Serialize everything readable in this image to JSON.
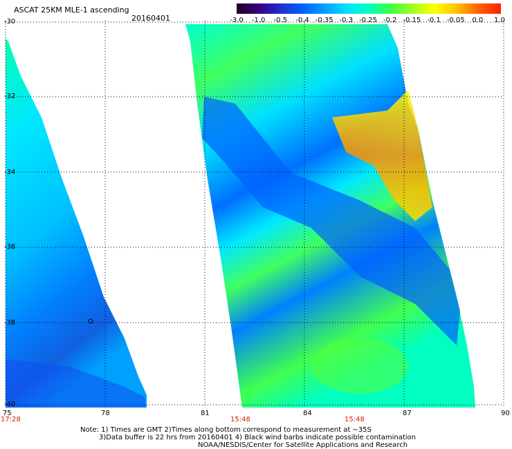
{
  "title": "ASCAT 25KM MLE-1 ascending",
  "date": "20160401",
  "colorbar": {
    "labels": [
      "-3.0",
      "-1.0",
      "-0.5",
      "-0.4",
      "-0.35",
      "-0.3",
      "-0.25",
      "-0.2",
      "-0.15",
      "-0.1",
      "-0.05",
      "0.0",
      "1.0"
    ],
    "colors": [
      "#200020",
      "#3a0080",
      "#2030d0",
      "#0060ff",
      "#00a0ff",
      "#00e0ff",
      "#00ffc0",
      "#40ff40",
      "#a0ff20",
      "#ffff00",
      "#ffc000",
      "#ff6000",
      "#ff2000"
    ]
  },
  "lat_labels": [
    "-30",
    "-32",
    "-34",
    "-36",
    "-38",
    "-40"
  ],
  "lon_labels": [
    "75",
    "78",
    "81",
    "84",
    "87",
    "90"
  ],
  "time_labels": [
    "17:28",
    "15:48",
    "15:48"
  ],
  "notes": {
    "line1": "Note: 1) Times are GMT 2)Times along bottom correspond to measurement at ~35S",
    "line2": "3)Data buffer is 22 hrs from 20160401 4) Black wind barbs indicate possible contamination",
    "line3": "NOAA/NESDIS/Center for Satellite Applications and Research"
  },
  "map": {
    "lon_range": [
      75,
      90
    ],
    "lat_range": [
      -40,
      -30
    ],
    "grid": true,
    "swaths": [
      {
        "name": "left-swath"
      },
      {
        "name": "right-swath"
      }
    ]
  }
}
